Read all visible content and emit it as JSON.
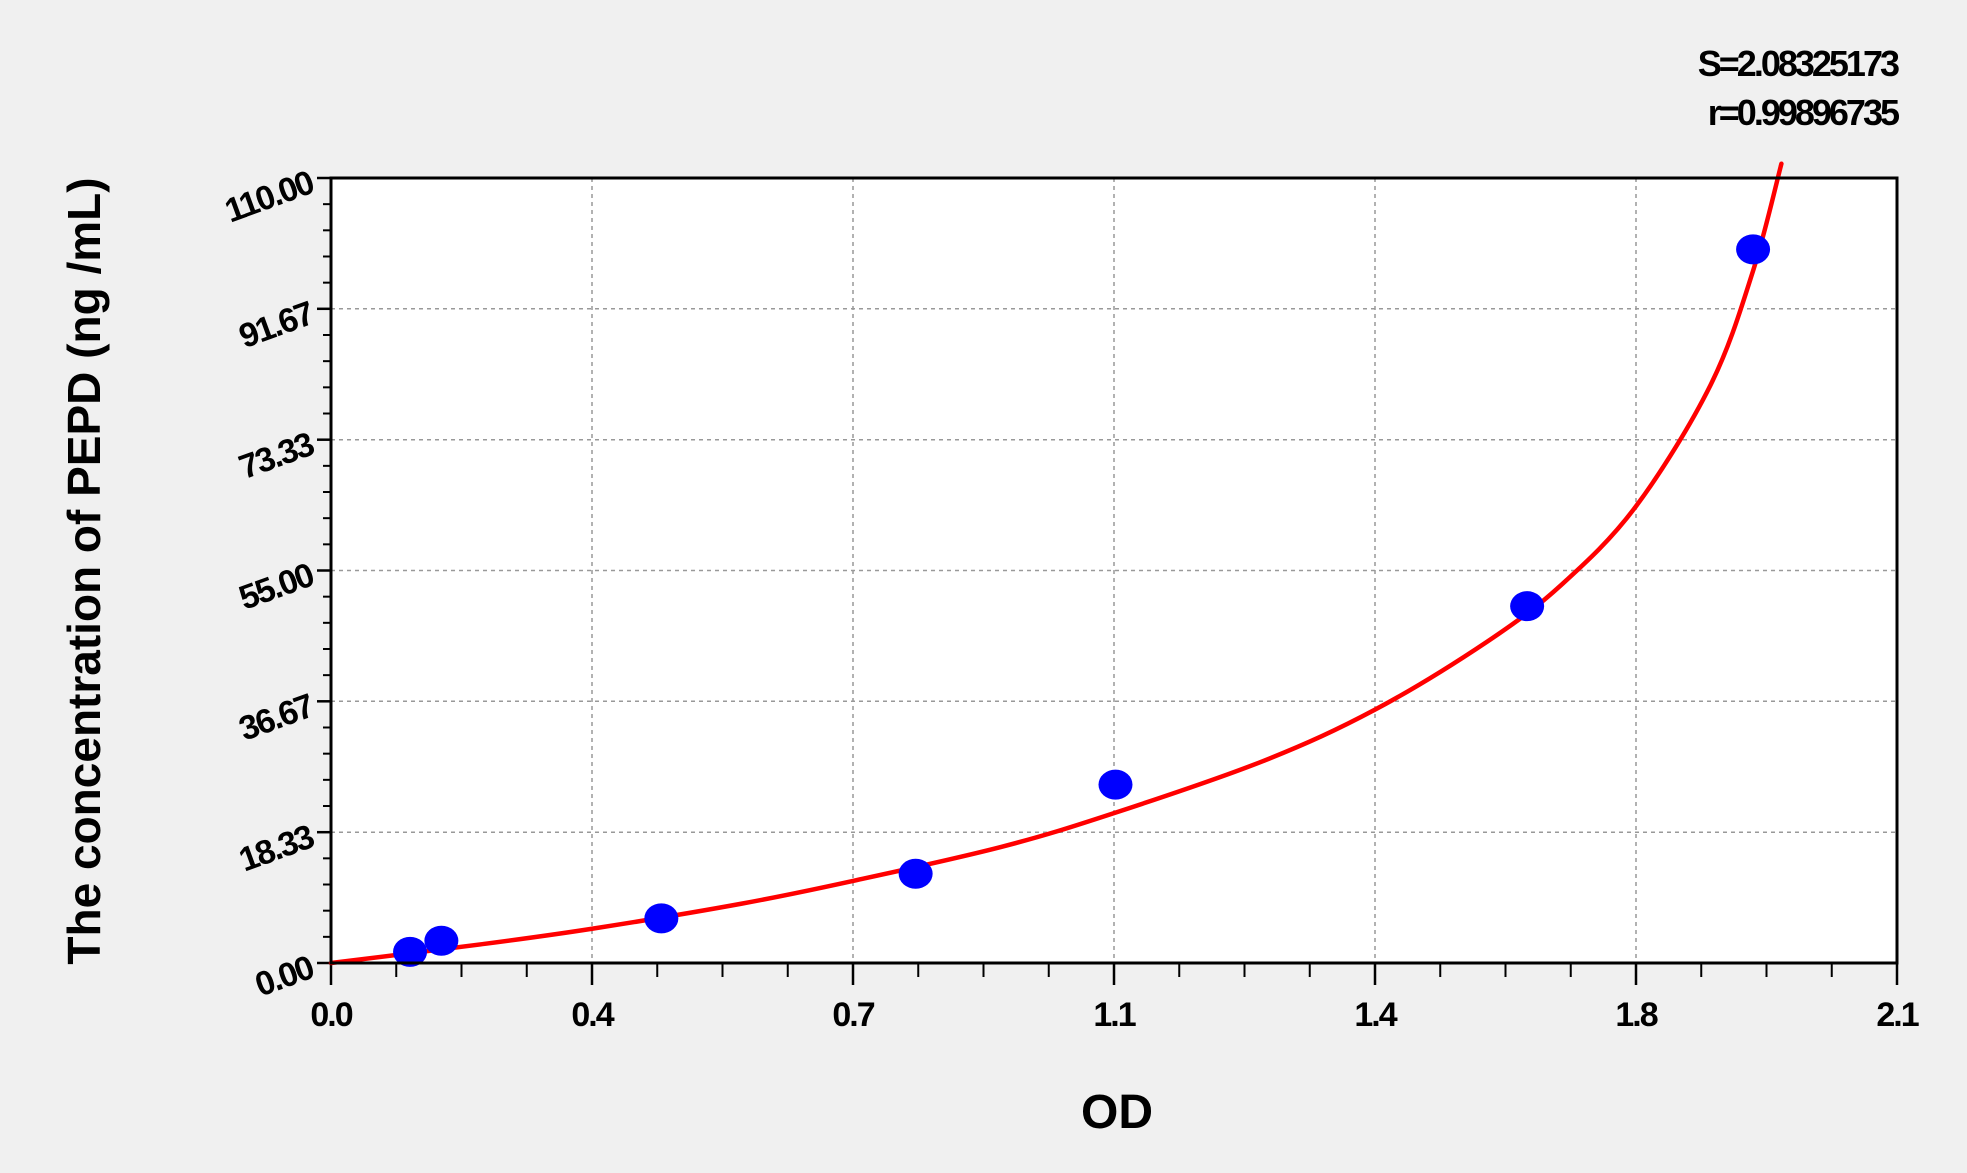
{
  "chart_data": {
    "type": "scatter",
    "title": "",
    "xlabel": "OD",
    "ylabel": "The concentration of PEPD  (ng /mL)",
    "xlim": [
      0,
      2.1
    ],
    "ylim": [
      0,
      110
    ],
    "x_tick_values": [
      0,
      0.35,
      0.7,
      1.05,
      1.4,
      1.75,
      2.1
    ],
    "x_tick_labels": [
      "0.0",
      "0.4",
      "0.7",
      "1.1",
      "1.4",
      "1.8",
      "2.1"
    ],
    "y_tick_values": [
      0,
      18.33,
      36.67,
      55,
      73.33,
      91.67,
      110
    ],
    "y_tick_labels": [
      "0.00",
      "18.33",
      "36.67",
      "55.00",
      "73.33",
      "91.67",
      "110.00"
    ],
    "grid": true,
    "series": [
      {
        "type": "scatter",
        "color": "#0000ff",
        "x": [
          0.106,
          0.148,
          0.443,
          0.784,
          1.052,
          1.604,
          1.907
        ],
        "y": [
          1.56,
          3.12,
          6.25,
          12.5,
          25,
          50,
          100
        ]
      },
      {
        "type": "line",
        "color": "#ff0000",
        "x": [
          0,
          0.2,
          0.35,
          0.55,
          0.7,
          0.9,
          1.05,
          1.25,
          1.4,
          1.55,
          1.65,
          1.75,
          1.85,
          1.907,
          1.945
        ],
        "y": [
          0,
          2.6,
          4.8,
          8.3,
          11.5,
          16.3,
          21.0,
          28.3,
          35.5,
          45.0,
          53.0,
          64.0,
          81.0,
          97.0,
          112.0
        ]
      }
    ],
    "annotations": [
      "S=2.08325173",
      "r=0.99896735"
    ]
  },
  "colors": {
    "background": "#f0f0f0",
    "plot_area": "#ffffff",
    "points": "#0000ff",
    "fit": "#ff0000"
  }
}
